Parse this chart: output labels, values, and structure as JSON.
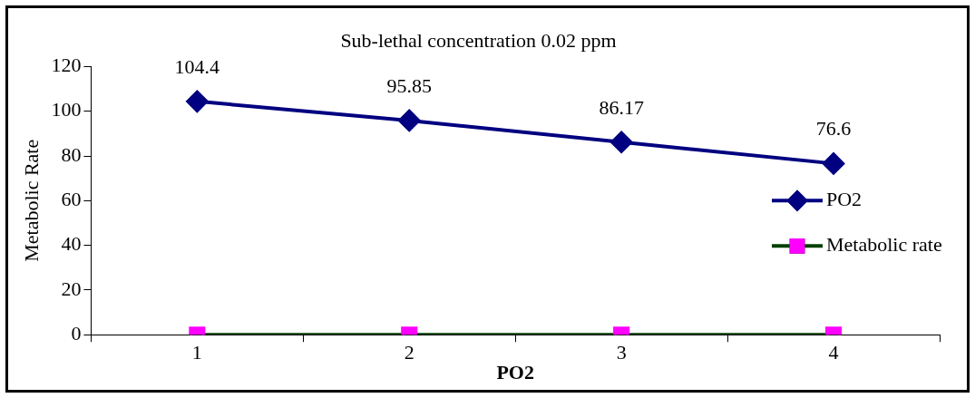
{
  "chart_data": {
    "type": "line",
    "title": "Sub-lethal concentration 0.02 ppm",
    "xlabel": "PO2",
    "ylabel": "Metabolic Rate",
    "categories": [
      "1",
      "2",
      "3",
      "4"
    ],
    "series": [
      {
        "name": "PO2",
        "color": "#000080",
        "marker": "diamond",
        "values": [
          104.4,
          95.85,
          86.17,
          76.6
        ],
        "value_labels": [
          "104.4",
          "95.85",
          "86.17",
          "76.6"
        ]
      },
      {
        "name": "Metabolic rate",
        "color": "#004000",
        "colors": [
          "#ff00ff",
          "#ff00ff",
          "#ff00ff",
          "#ff00ff"
        ],
        "marker": "square",
        "values": [
          0,
          0,
          0,
          0
        ]
      }
    ],
    "ylim": [
      0,
      120
    ],
    "yticks": [
      0,
      20,
      40,
      60,
      80,
      100,
      120
    ],
    "grid": false,
    "legend": "right"
  }
}
